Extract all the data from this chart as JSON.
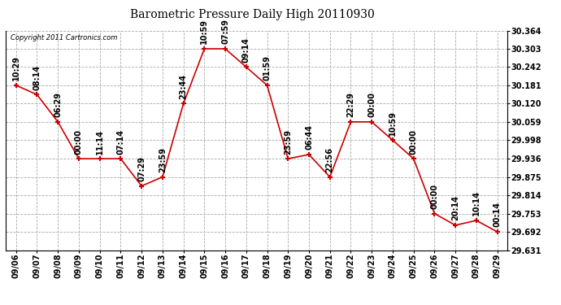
{
  "title": "Barometric Pressure Daily High 20110930",
  "copyright": "Copyright 2011 Cartronics.com",
  "background_color": "#ffffff",
  "line_color": "#cc0000",
  "marker_color": "#cc0000",
  "grid_color": "#aaaaaa",
  "dates": [
    "09/06",
    "09/07",
    "09/08",
    "09/09",
    "09/10",
    "09/11",
    "09/12",
    "09/13",
    "09/14",
    "09/15",
    "09/16",
    "09/17",
    "09/18",
    "09/19",
    "09/20",
    "09/21",
    "09/22",
    "09/23",
    "09/24",
    "09/25",
    "09/26",
    "09/27",
    "09/28",
    "09/29"
  ],
  "values": [
    30.181,
    30.15,
    30.059,
    29.936,
    29.936,
    29.936,
    29.845,
    29.875,
    30.12,
    30.303,
    30.303,
    30.242,
    30.181,
    29.936,
    29.95,
    29.875,
    30.059,
    30.059,
    29.998,
    29.936,
    29.753,
    29.714,
    29.73,
    29.692
  ],
  "time_labels": [
    "10:29",
    "08:14",
    "06:29",
    "00:00",
    "11:14",
    "07:14",
    "07:29",
    "23:59",
    "23:44",
    "10:59",
    "07:59",
    "09:14",
    "01:59",
    "23:59",
    "06:44",
    "22:56",
    "22:29",
    "00:00",
    "10:59",
    "00:00",
    "00:00",
    "20:14",
    "10:14",
    "00:14"
  ],
  "ylim": [
    29.631,
    30.364
  ],
  "yticks": [
    29.631,
    29.692,
    29.753,
    29.814,
    29.875,
    29.936,
    29.998,
    30.059,
    30.12,
    30.181,
    30.242,
    30.303,
    30.364
  ],
  "title_fontsize": 10,
  "label_fontsize": 7,
  "tick_fontsize": 7,
  "copyright_fontsize": 6
}
